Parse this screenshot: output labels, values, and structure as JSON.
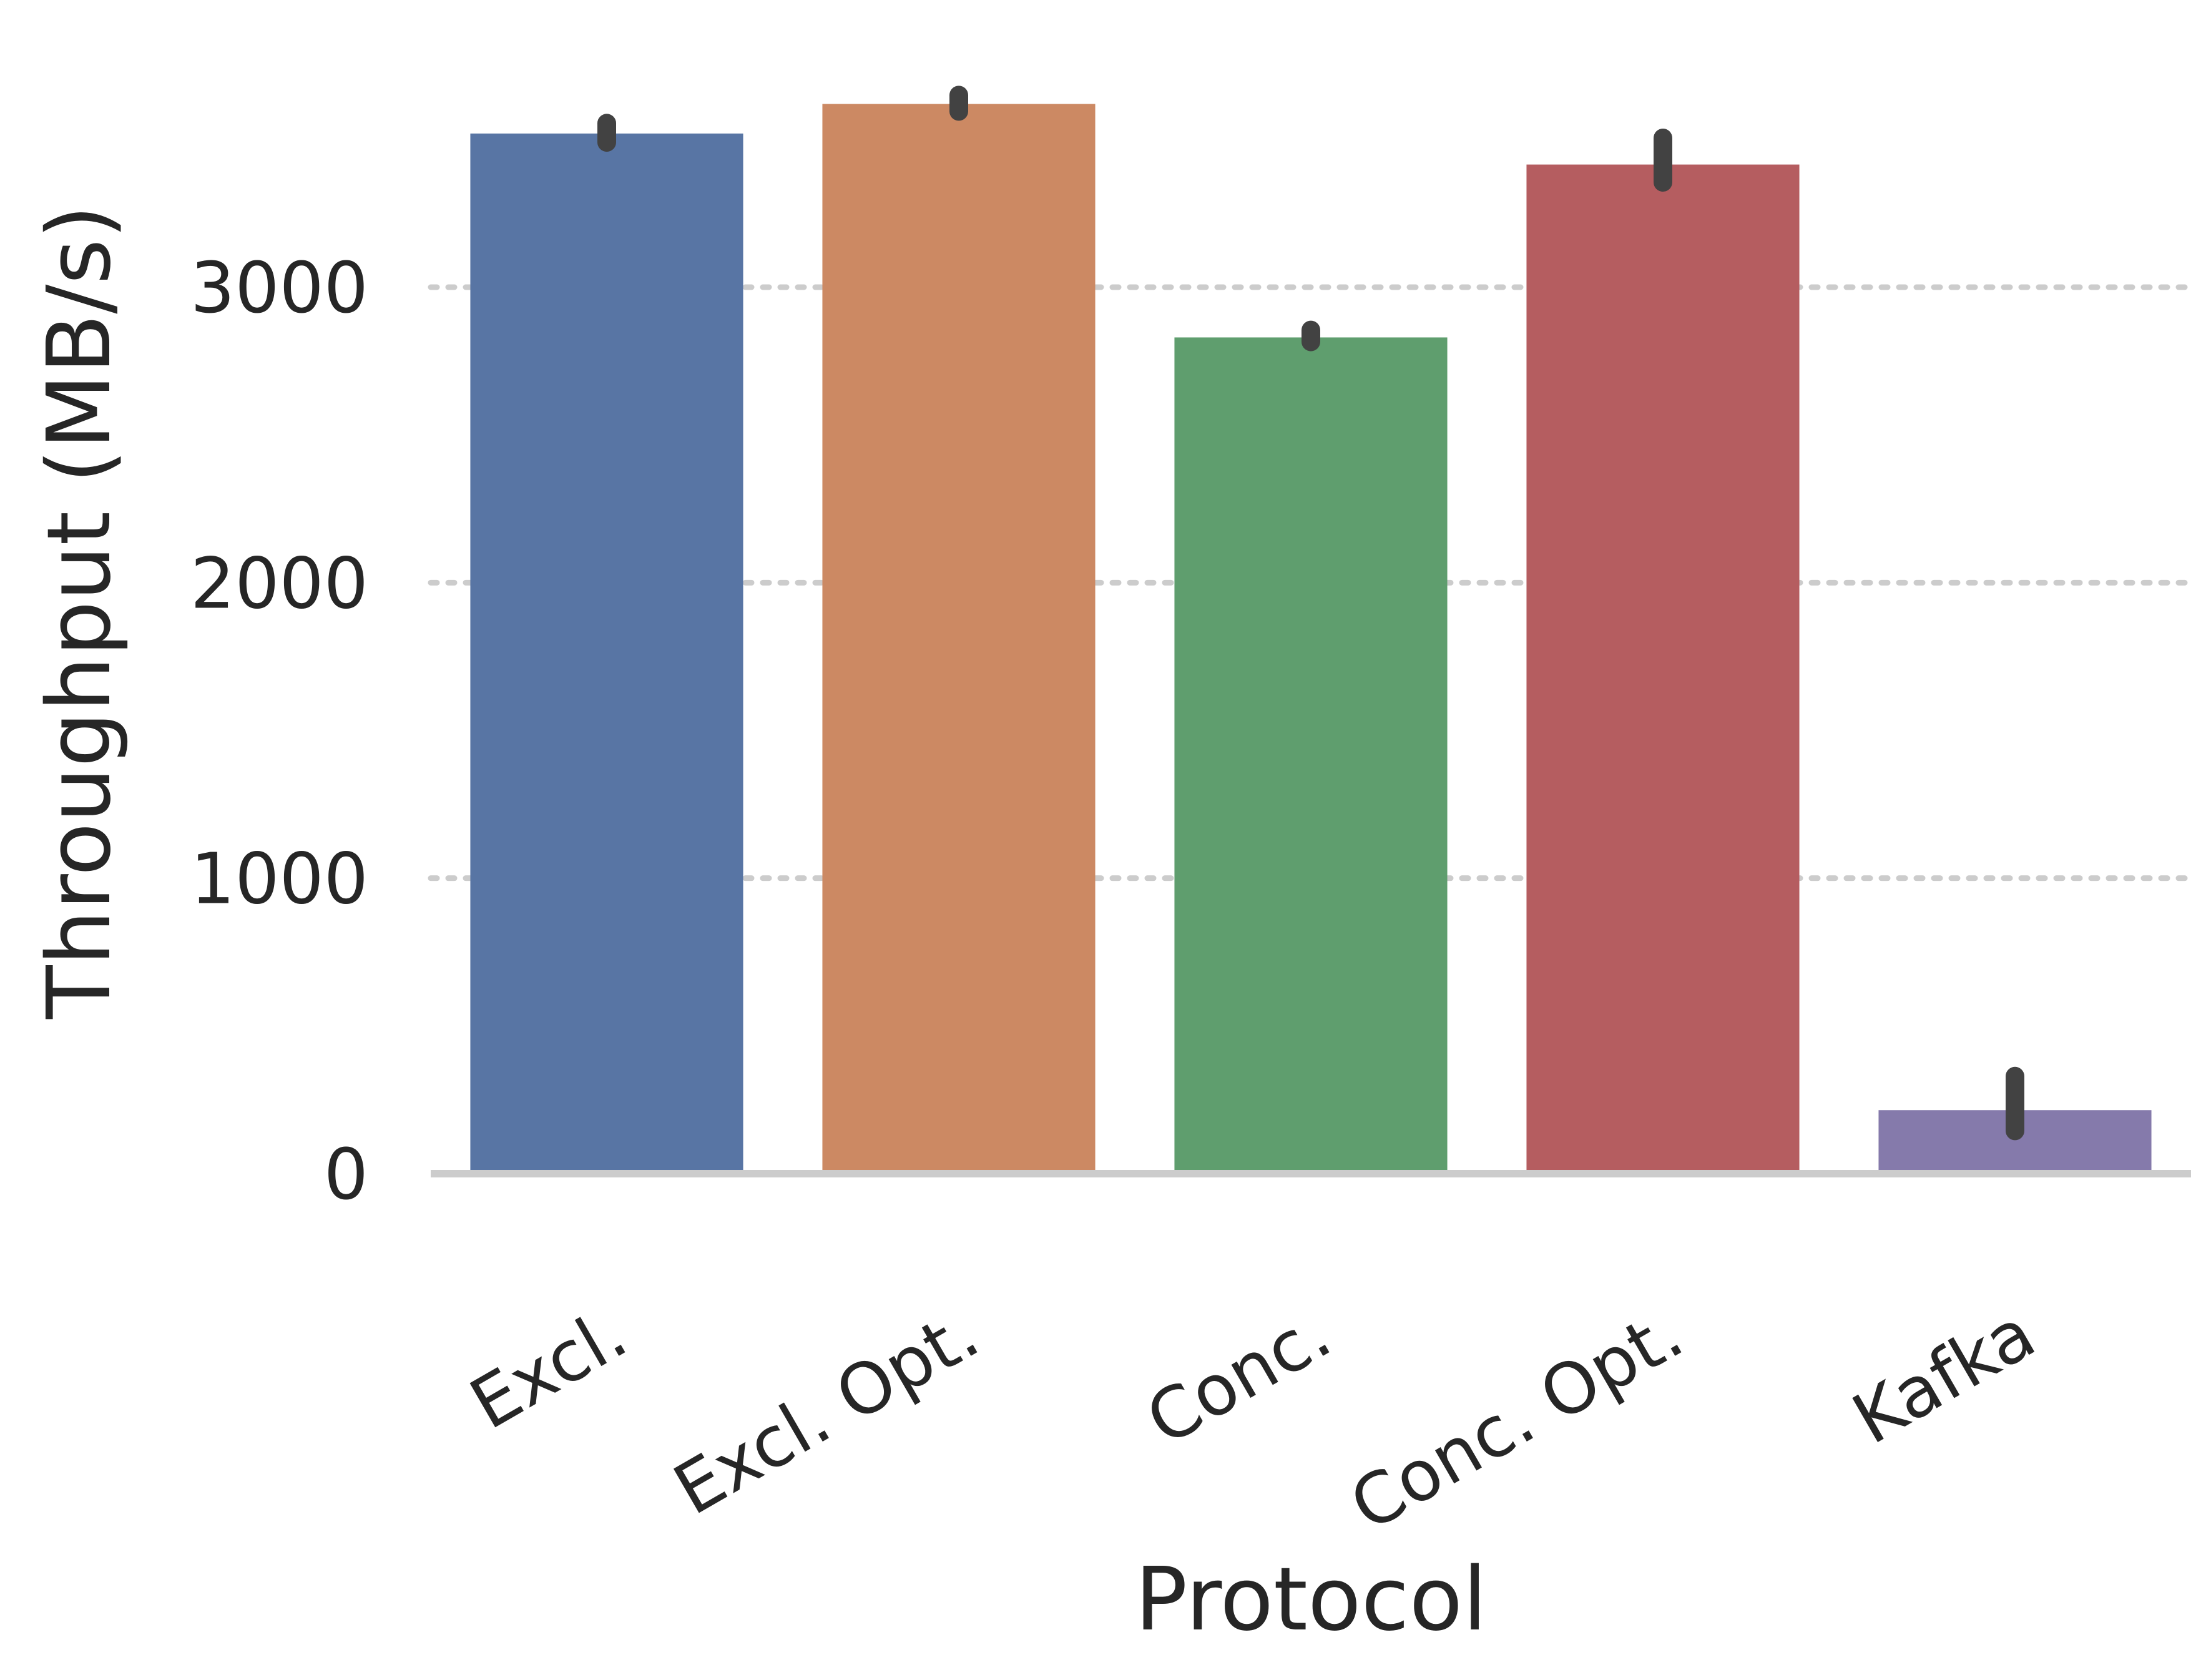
{
  "chart_data": {
    "type": "bar",
    "title": "",
    "xlabel": "Protocol",
    "ylabel": "Throughput (MB/s)",
    "categories": [
      "Excl.",
      "Excl. Opt.",
      "Conc.",
      "Conc. Opt.",
      "Kafka"
    ],
    "values": [
      3520,
      3620,
      2830,
      3415,
      215
    ],
    "error_low": [
      3490,
      3595,
      2815,
      3355,
      145
    ],
    "error_high": [
      3555,
      3650,
      2855,
      3505,
      330
    ],
    "colors": [
      "#5875a4",
      "#cc8963",
      "#5f9e6e",
      "#b55d60",
      "#857aab"
    ],
    "yticks": [
      0,
      1000,
      2000,
      3000
    ],
    "ylim": [
      0,
      3850
    ],
    "grid": true
  }
}
